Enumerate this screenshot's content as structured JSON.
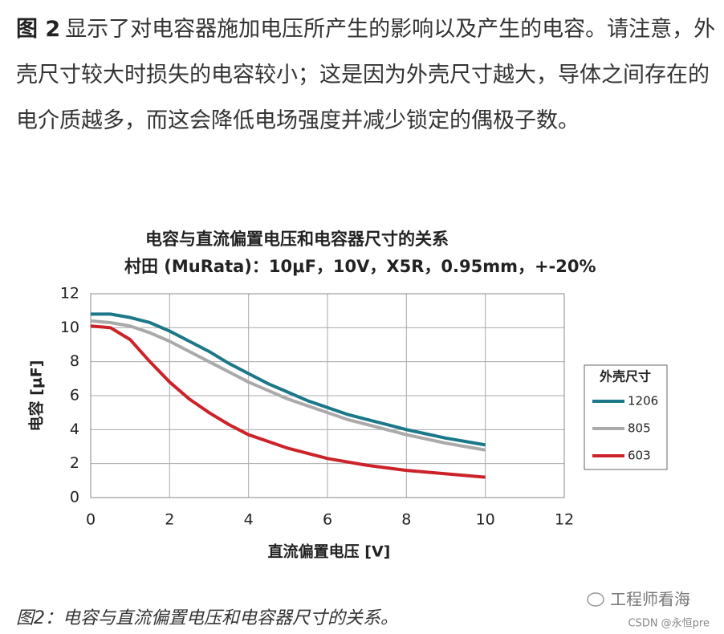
{
  "paragraph": {
    "lead": "图 2",
    "text": "显示了对电容器施加电压所产生的影响以及产生的电容。请注意，外壳尺寸较大时损失的电容较小；这是因为外壳尺寸越大，导体之间存在的电介质越多，而这会降低电场强度并减少锁定的偶极子数。"
  },
  "chart_data": {
    "type": "line",
    "title": "电容与直流偏置电压和电容器尺寸的关系",
    "subtitle": "村田 (MuRata)：10μF，10V，X5R，0.95mm，+-20%",
    "x_label": "直流偏置电压 [V]",
    "y_label": "电容 [μF]",
    "legend_title": "外壳尺寸",
    "x": [
      0,
      0.5,
      1,
      1.5,
      2,
      2.5,
      3,
      3.5,
      4,
      4.5,
      5,
      5.5,
      6,
      6.5,
      7,
      7.5,
      8,
      8.5,
      9,
      9.5,
      10
    ],
    "series": [
      {
        "name": "1206",
        "color": "#1b7888",
        "values": [
          10.8,
          10.8,
          10.6,
          10.3,
          9.8,
          9.2,
          8.6,
          7.9,
          7.3,
          6.7,
          6.2,
          5.7,
          5.3,
          4.9,
          4.6,
          4.3,
          4.0,
          3.75,
          3.5,
          3.3,
          3.1
        ]
      },
      {
        "name": "805",
        "color": "#aaaaaa",
        "values": [
          10.4,
          10.3,
          10.1,
          9.7,
          9.2,
          8.6,
          8.0,
          7.4,
          6.8,
          6.3,
          5.8,
          5.4,
          5.0,
          4.6,
          4.3,
          4.0,
          3.7,
          3.45,
          3.2,
          3.0,
          2.8
        ]
      },
      {
        "name": "603",
        "color": "#cc2229",
        "values": [
          10.1,
          10.0,
          9.3,
          8.0,
          6.8,
          5.8,
          5.0,
          4.3,
          3.7,
          3.3,
          2.9,
          2.6,
          2.3,
          2.1,
          1.9,
          1.75,
          1.6,
          1.5,
          1.4,
          1.3,
          1.2
        ]
      }
    ],
    "xlim": [
      0,
      12
    ],
    "xticks": [
      0,
      2,
      4,
      6,
      8,
      10,
      12
    ],
    "ylim": [
      0,
      12
    ],
    "yticks": [
      0,
      2,
      4,
      6,
      8,
      10,
      12
    ],
    "grid": true,
    "legend": "right"
  },
  "caption": "图2：电容与直流偏置电压和电容器尺寸的关系。",
  "watermark": {
    "name": "工程师看海",
    "source": "CSDN @永恒pre"
  }
}
